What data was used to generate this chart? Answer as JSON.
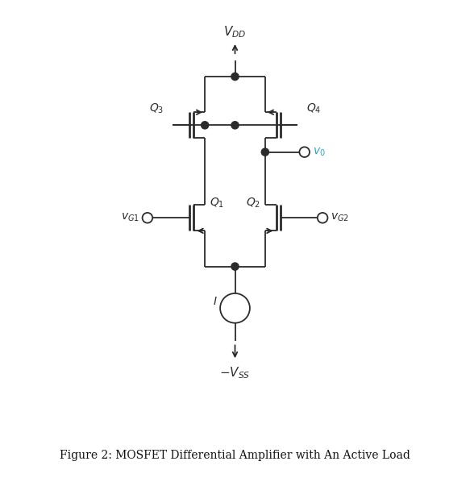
{
  "fig_width": 5.83,
  "fig_height": 5.98,
  "background_color": "#ffffff",
  "line_color": "#2b2b2b",
  "line_width": 1.3,
  "title": "Figure 2: MOSFET Differential Amplifier with An Active Load",
  "title_fontsize": 10,
  "vdd_label": "$V_{DD}$",
  "vss_label": "$-V_{SS}$",
  "vg1_label": "$v_{G1}$",
  "vg2_label": "$v_{G2}$",
  "vo_label": "$v_0$",
  "vo_color": "#29a8c5",
  "q1_label": "$Q_1$",
  "q2_label": "$Q_2$",
  "q3_label": "$Q_3$",
  "q4_label": "$Q_4$",
  "I_label": "$I$",
  "xlim": [
    0,
    10
  ],
  "ylim": [
    0,
    10
  ]
}
